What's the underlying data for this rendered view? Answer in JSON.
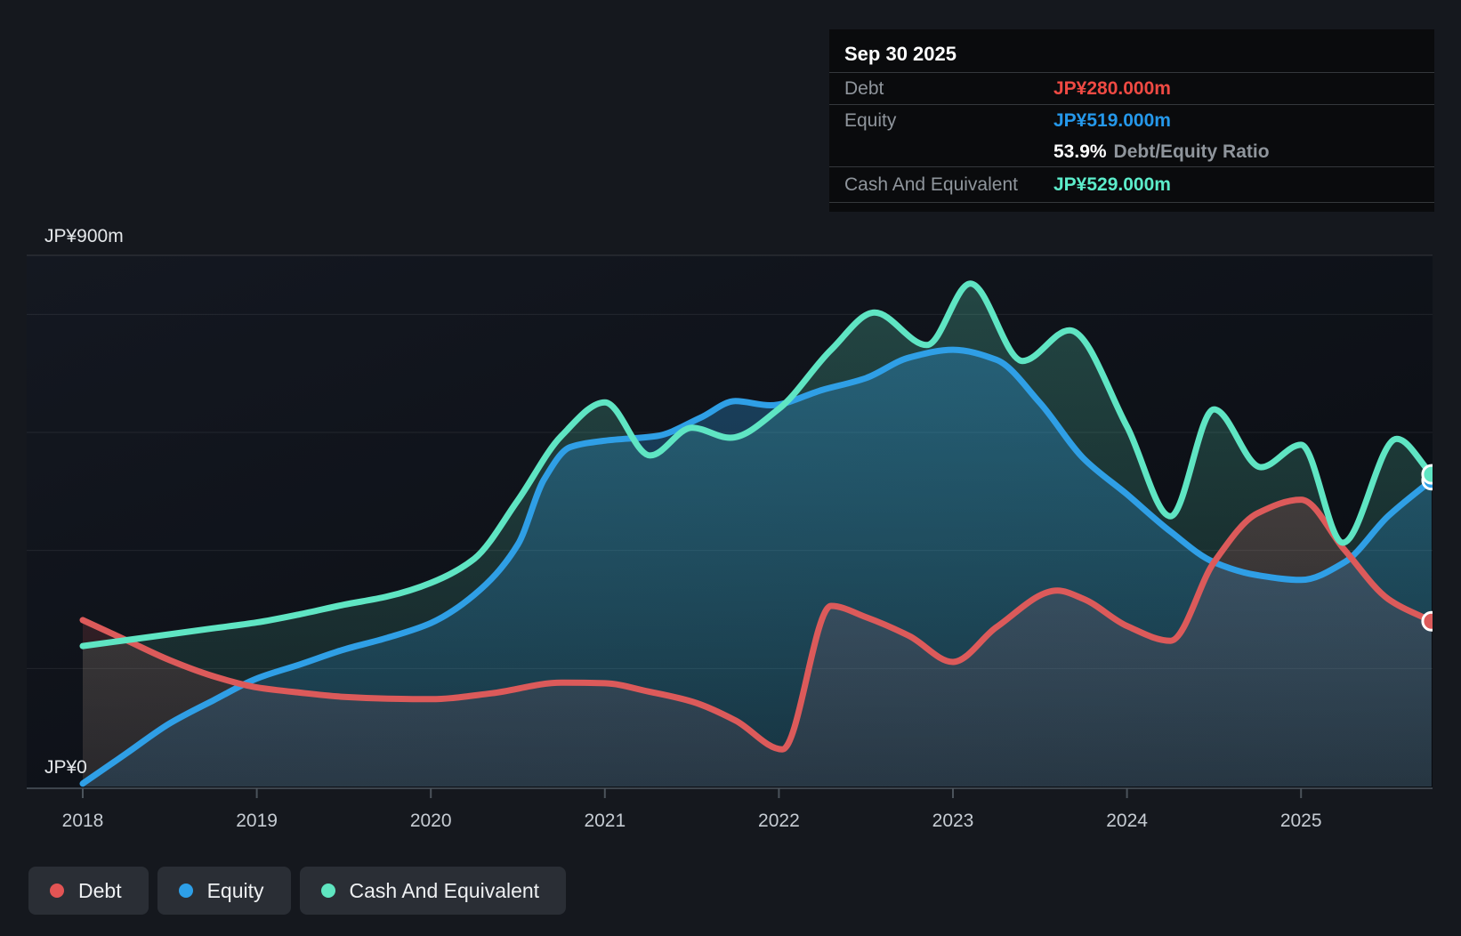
{
  "tooltip": {
    "title": "Sep 30 2025",
    "debt_label": "Debt",
    "debt_value": "JP¥280.000m",
    "equity_label": "Equity",
    "equity_value": "JP¥519.000m",
    "ratio_value": "53.9%",
    "ratio_label": "Debt/Equity Ratio",
    "cash_label": "Cash And Equivalent",
    "cash_value": "JP¥529.000m",
    "debt_color": "#ef4a43",
    "equity_color": "#2598ea",
    "cash_color": "#5cecca"
  },
  "legend": {
    "items": [
      {
        "id": "debt",
        "label": "Debt",
        "color": "#e25454"
      },
      {
        "id": "equity",
        "label": "Equity",
        "color": "#2d9fe8"
      },
      {
        "id": "cash",
        "label": "Cash And Equivalent",
        "color": "#5fe5c0"
      }
    ]
  },
  "chart_data": {
    "type": "area",
    "title": "Debt to Equity history",
    "y_label_top": "JP¥900m",
    "y_label_zero": "JP¥0",
    "x_ticks": [
      "2018",
      "2019",
      "2020",
      "2021",
      "2022",
      "2023",
      "2024",
      "2025"
    ],
    "xlim": [
      2018,
      2025.75
    ],
    "ylim": [
      0,
      900
    ],
    "y_unit": "JP¥ millions",
    "gridline_values": [
      900,
      800,
      600,
      400,
      200
    ],
    "grid_on": true,
    "legend_position": "bottom-left",
    "last_point_date": "Sep 30 2025",
    "series": [
      {
        "name": "Debt",
        "color": "#dc5a5a",
        "fill_top": "rgba(221,90,90,0.28)",
        "fill_bottom": "rgba(221,90,90,0.10)",
        "points": [
          [
            2018,
            282
          ],
          [
            2018.25,
            248
          ],
          [
            2018.5,
            214
          ],
          [
            2018.75,
            187
          ],
          [
            2019,
            168
          ],
          [
            2019.25,
            159
          ],
          [
            2019.5,
            152
          ],
          [
            2019.75,
            149
          ],
          [
            2020,
            148
          ],
          [
            2020.35,
            158
          ],
          [
            2020.75,
            176
          ],
          [
            2021,
            175
          ],
          [
            2021.25,
            161
          ],
          [
            2021.5,
            144
          ],
          [
            2021.75,
            112
          ],
          [
            2022.02,
            63
          ],
          [
            2022.3,
            306
          ],
          [
            2022.5,
            287
          ],
          [
            2022.75,
            255
          ],
          [
            2023,
            211
          ],
          [
            2023.25,
            270
          ],
          [
            2023.6,
            332
          ],
          [
            2023.75,
            318
          ],
          [
            2024,
            272
          ],
          [
            2024.25,
            247
          ],
          [
            2024.5,
            380
          ],
          [
            2024.75,
            463
          ],
          [
            2025,
            486
          ],
          [
            2025.25,
            401
          ],
          [
            2025.5,
            318
          ],
          [
            2025.75,
            280
          ]
        ]
      },
      {
        "name": "Equity",
        "color": "#2f9fe6",
        "fill_top": "rgba(47,158,230,0.37)",
        "fill_bottom": "rgba(47,158,230,0.15)",
        "points": [
          [
            2018,
            5
          ],
          [
            2018.25,
            56
          ],
          [
            2018.5,
            107
          ],
          [
            2018.75,
            146
          ],
          [
            2019,
            183
          ],
          [
            2019.25,
            207
          ],
          [
            2019.5,
            232
          ],
          [
            2019.75,
            252
          ],
          [
            2020,
            277
          ],
          [
            2020.25,
            325
          ],
          [
            2020.5,
            410
          ],
          [
            2020.65,
            520
          ],
          [
            2020.8,
            575
          ],
          [
            2021,
            586
          ],
          [
            2021.3,
            594
          ],
          [
            2021.55,
            625
          ],
          [
            2021.75,
            653
          ],
          [
            2021.95,
            646
          ],
          [
            2022.25,
            672
          ],
          [
            2022.5,
            692
          ],
          [
            2022.75,
            727
          ],
          [
            2023,
            740
          ],
          [
            2023.25,
            723
          ],
          [
            2023.5,
            650
          ],
          [
            2023.75,
            556
          ],
          [
            2024,
            495
          ],
          [
            2024.25,
            432
          ],
          [
            2024.5,
            380
          ],
          [
            2024.75,
            358
          ],
          [
            2025,
            350
          ],
          [
            2025.25,
            380
          ],
          [
            2025.5,
            458
          ],
          [
            2025.75,
            519
          ]
        ]
      },
      {
        "name": "Cash And Equivalent",
        "color": "#5fe5c3",
        "fill_top": "rgba(95,229,195,0.25)",
        "fill_bottom": "rgba(95,229,195,0.08)",
        "points": [
          [
            2018,
            238
          ],
          [
            2018.25,
            248
          ],
          [
            2018.5,
            258
          ],
          [
            2018.75,
            268
          ],
          [
            2019,
            278
          ],
          [
            2019.25,
            292
          ],
          [
            2019.5,
            308
          ],
          [
            2019.75,
            322
          ],
          [
            2020,
            345
          ],
          [
            2020.25,
            386
          ],
          [
            2020.5,
            485
          ],
          [
            2020.75,
            594
          ],
          [
            2021,
            651
          ],
          [
            2021.26,
            561
          ],
          [
            2021.5,
            608
          ],
          [
            2021.72,
            591
          ],
          [
            2022,
            640
          ],
          [
            2022.3,
            740
          ],
          [
            2022.55,
            803
          ],
          [
            2022.85,
            748
          ],
          [
            2023.1,
            852
          ],
          [
            2023.4,
            721
          ],
          [
            2023.67,
            773
          ],
          [
            2024,
            610
          ],
          [
            2024.25,
            458
          ],
          [
            2024.5,
            639
          ],
          [
            2024.77,
            541
          ],
          [
            2025,
            579
          ],
          [
            2025.24,
            413
          ],
          [
            2025.55,
            589
          ],
          [
            2025.75,
            529
          ]
        ]
      }
    ]
  }
}
